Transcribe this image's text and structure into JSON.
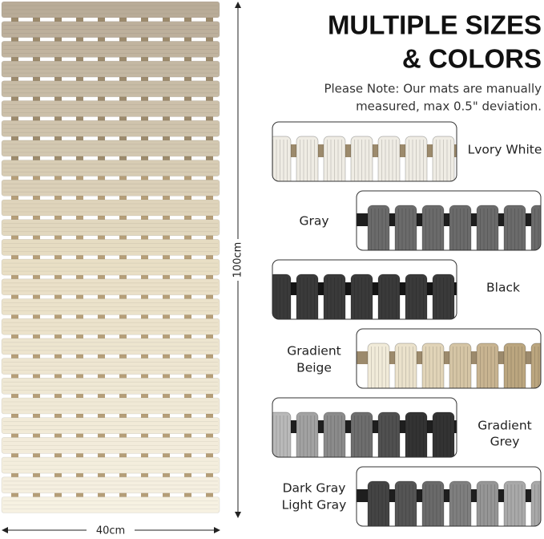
{
  "heading": [
    "MULTIPLE SIZES",
    "& COLORS"
  ],
  "note": [
    "Please Note: Our mats are manually",
    "measured, max 0.5\" deviation."
  ],
  "dimensions": {
    "height": "100cm",
    "width": "40cm"
  },
  "swatches": [
    {
      "label": [
        "Lvory White"
      ]
    },
    {
      "label": [
        "Gray"
      ]
    },
    {
      "label": [
        "Black"
      ]
    },
    {
      "label": [
        "Gradient",
        "Beige"
      ]
    },
    {
      "label": [
        "Gradient",
        "Grey"
      ]
    },
    {
      "label": [
        "Dark Gray",
        "Light Gray"
      ]
    }
  ]
}
